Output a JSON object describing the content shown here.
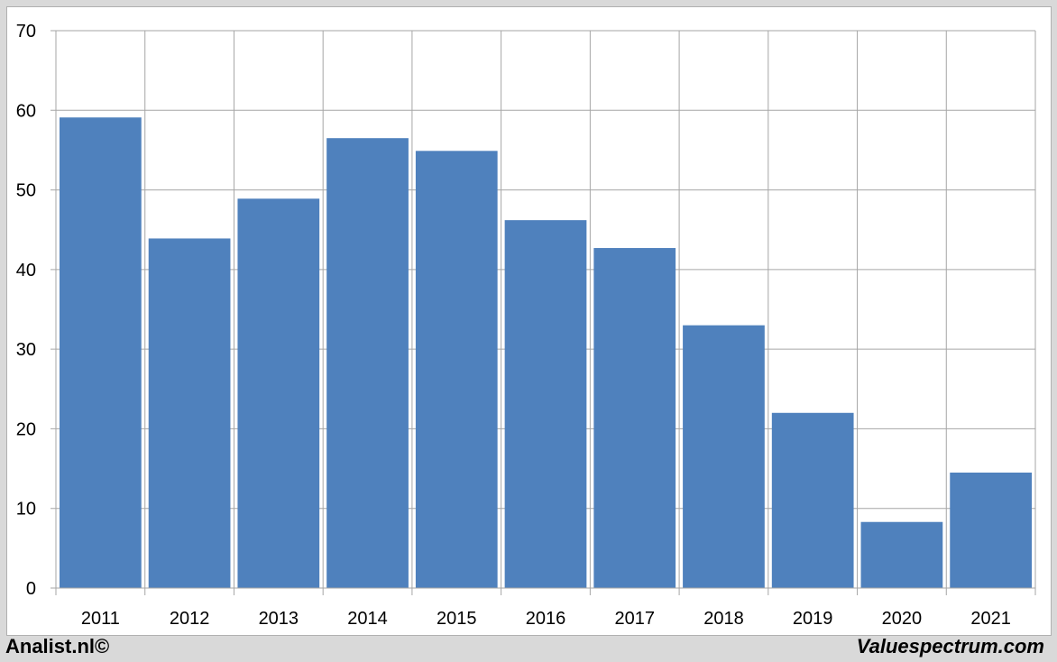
{
  "chart_data": {
    "type": "bar",
    "categories": [
      "2011",
      "2012",
      "2013",
      "2014",
      "2015",
      "2016",
      "2017",
      "2018",
      "2019",
      "2020",
      "2021"
    ],
    "values": [
      59.1,
      43.9,
      48.9,
      56.5,
      54.9,
      46.2,
      42.7,
      33.0,
      22.0,
      8.3,
      14.5
    ],
    "ylim": [
      0,
      70
    ],
    "yticks": [
      "0",
      "10",
      "20",
      "30",
      "40",
      "50",
      "60",
      "70"
    ],
    "grid": true,
    "bar_color": "#4f81bd",
    "title": "",
    "xlabel": "",
    "ylabel": ""
  },
  "footer": {
    "left": "Analist.nl©",
    "right": "Valuespectrum.com"
  }
}
